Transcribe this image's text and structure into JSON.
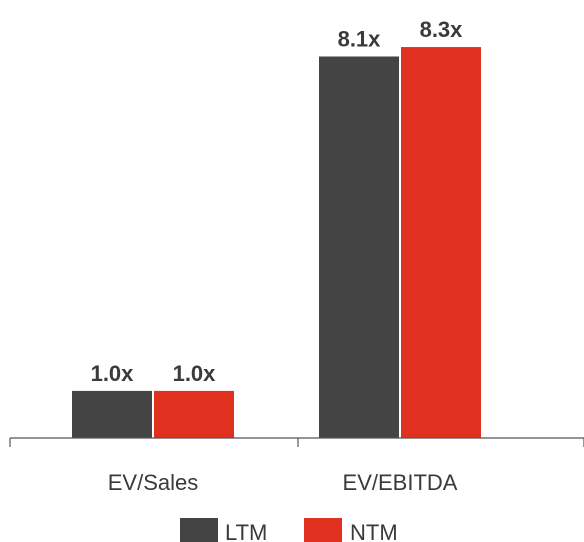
{
  "chart_data": {
    "type": "bar",
    "categories": [
      "EV/Sales",
      "EV/EBITDA"
    ],
    "series": [
      {
        "name": "LTM",
        "color": "#444444",
        "values": [
          1.0,
          8.1
        ],
        "labels": [
          "1.0x",
          "8.1x"
        ]
      },
      {
        "name": "NTM",
        "color": "#e03020",
        "values": [
          1.0,
          8.3
        ],
        "labels": [
          "1.0x",
          "8.3x"
        ]
      }
    ],
    "title": "",
    "xlabel": "",
    "ylabel": "",
    "ylim": [
      0,
      8.8
    ],
    "grid": false,
    "legend": "bottom-center"
  }
}
